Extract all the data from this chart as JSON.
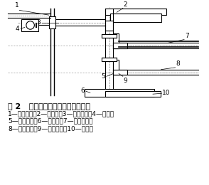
{
  "title_line1": "图 2   修改后的槽式洗矿机传动装置",
  "caption_line2": "1—大皮带轮；2—减速机；3—小皮带轮；4—电机；",
  "caption_line3": "5—小锥齿轮；6—直齿轮；7—右螺旋轴；",
  "caption_line4": "8—左螺旋轴；9—大锥齿轮；10—直齿轮",
  "bg_color": "#ffffff",
  "line_color": "#000000",
  "text_color": "#000000",
  "title_fontsize": 8.0,
  "caption_fontsize": 6.5
}
